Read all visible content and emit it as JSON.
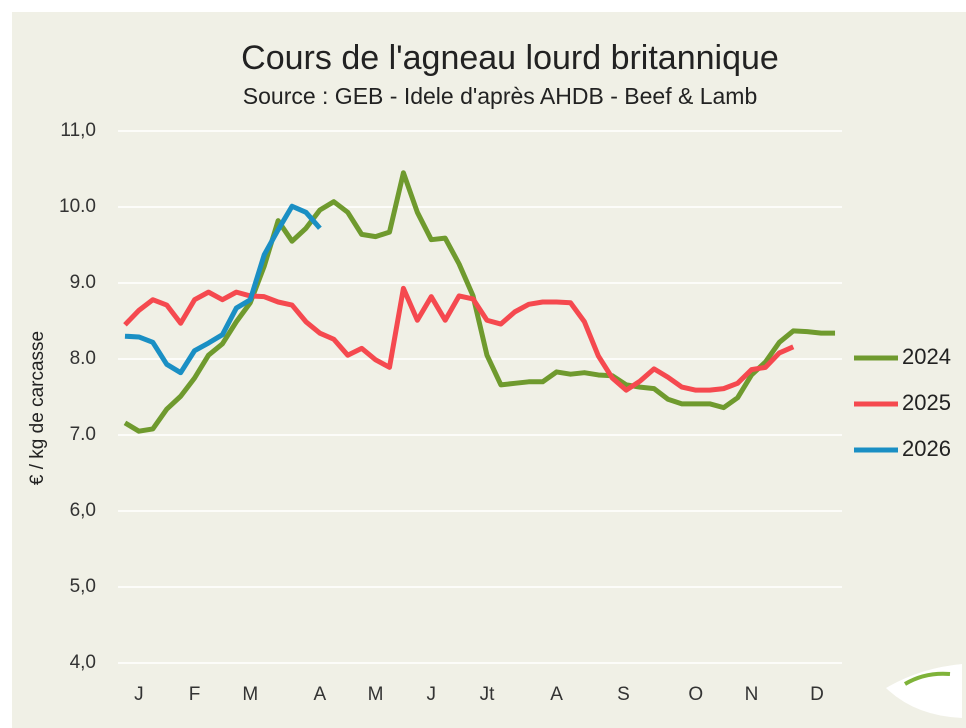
{
  "chart_data": {
    "type": "line",
    "title": "Cours de l'agneau lourd britannique",
    "subtitle": "Source : GEB - Idele d'après AHDB - Beef & Lamb",
    "ylabel": "€ / kg de carcasse",
    "x": [
      1,
      2,
      3,
      4,
      5,
      6,
      7,
      8,
      9,
      10,
      11,
      12,
      13,
      14,
      15,
      16,
      17,
      18,
      19,
      20,
      21,
      22,
      23,
      24,
      25,
      26,
      27,
      28,
      29,
      30,
      31,
      32,
      33,
      34,
      35,
      36,
      37,
      38,
      39,
      40,
      41,
      42,
      43,
      44,
      45,
      46,
      47,
      48,
      49,
      50,
      51,
      52
    ],
    "xlim": [
      0.5,
      52.5
    ],
    "xticks": [
      {
        "value": 2,
        "label": "J"
      },
      {
        "value": 6,
        "label": "F"
      },
      {
        "value": 10,
        "label": "M"
      },
      {
        "value": 15,
        "label": "A"
      },
      {
        "value": 19,
        "label": "M"
      },
      {
        "value": 23,
        "label": "J"
      },
      {
        "value": 27,
        "label": "Jt"
      },
      {
        "value": 32,
        "label": "A"
      },
      {
        "value": 36.8,
        "label": "S"
      },
      {
        "value": 42,
        "label": "O"
      },
      {
        "value": 46,
        "label": "N"
      },
      {
        "value": 50.7,
        "label": "D"
      }
    ],
    "ylim": [
      4,
      11
    ],
    "yticks": [
      {
        "value": 4,
        "label": "4,0"
      },
      {
        "value": 5,
        "label": "5,0"
      },
      {
        "value": 6,
        "label": "6,0"
      },
      {
        "value": 7,
        "label": "7.0"
      },
      {
        "value": 8,
        "label": "8.0"
      },
      {
        "value": 9,
        "label": "9.0"
      },
      {
        "value": 10,
        "label": "10.0"
      },
      {
        "value": 11,
        "label": "11,0"
      }
    ],
    "grid": true,
    "legend": "right",
    "series": [
      {
        "name": "2024",
        "color": "#6f9a2e",
        "values": [
          7.16,
          7.05,
          7.08,
          7.34,
          7.51,
          7.75,
          8.05,
          8.2,
          8.49,
          8.74,
          9.22,
          9.82,
          9.55,
          9.72,
          9.96,
          10.07,
          9.93,
          9.64,
          9.61,
          9.67,
          10.45,
          9.93,
          9.57,
          9.59,
          9.25,
          8.83,
          8.05,
          7.66,
          7.68,
          7.7,
          7.7,
          7.83,
          7.8,
          7.82,
          7.79,
          7.78,
          7.66,
          7.63,
          7.61,
          7.47,
          7.41,
          7.41,
          7.41,
          7.36,
          7.49,
          7.79,
          7.96,
          8.22,
          8.37,
          8.36,
          8.34,
          8.34
        ]
      },
      {
        "name": "2025",
        "color": "#f5494f",
        "values": [
          8.45,
          8.64,
          8.78,
          8.71,
          8.47,
          8.78,
          8.88,
          8.78,
          8.88,
          8.83,
          8.82,
          8.75,
          8.71,
          8.49,
          8.34,
          8.26,
          8.05,
          8.14,
          7.99,
          7.89,
          8.93,
          8.51,
          8.82,
          8.51,
          8.83,
          8.79,
          8.51,
          8.46,
          8.62,
          8.72,
          8.75,
          8.75,
          8.74,
          8.49,
          8.04,
          7.75,
          7.59,
          7.71,
          7.87,
          7.76,
          7.63,
          7.59,
          7.59,
          7.61,
          7.68,
          7.86,
          7.89,
          8.08,
          8.16,
          null,
          null,
          null
        ]
      },
      {
        "name": "2026",
        "color": "#1a8fc4",
        "values": [
          8.3,
          8.29,
          8.22,
          7.93,
          7.82,
          8.11,
          8.21,
          8.32,
          8.67,
          8.78,
          9.37,
          9.7,
          10.01,
          9.93,
          9.72,
          null,
          null,
          null,
          null,
          null,
          null,
          null,
          null,
          null,
          null,
          null,
          null,
          null,
          null,
          null,
          null,
          null,
          null,
          null,
          null,
          null,
          null,
          null,
          null,
          null,
          null,
          null,
          null,
          null,
          null,
          null,
          null,
          null,
          null,
          null,
          null,
          null
        ]
      }
    ]
  }
}
